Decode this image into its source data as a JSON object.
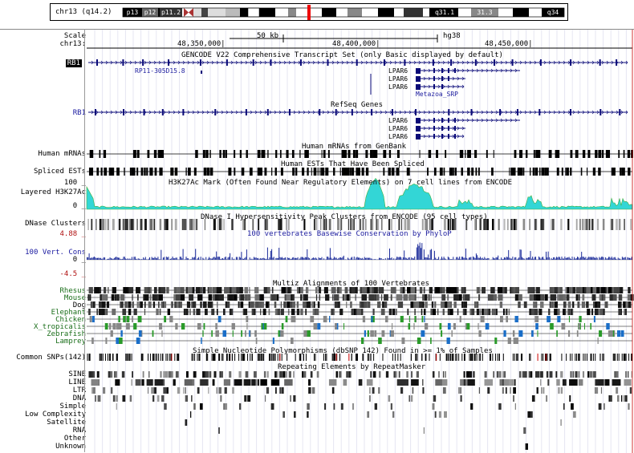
{
  "ideogram": {
    "chrom_label": "chr13 (q14.2)",
    "bands": [
      "p13",
      "p12",
      "p11.2",
      "q31.1",
      "31.3",
      "q34"
    ]
  },
  "ruler": {
    "scale_label": "Scale",
    "chrom_label": "chr13:",
    "scale_bar": "50 kb",
    "assembly": "hg38",
    "ticks": [
      "48,350,000|",
      "48,400,000|",
      "48,450,000|"
    ]
  },
  "tracks": {
    "gencode_title": "GENCODE V22 Comprehensive Transcript Set (only Basic displayed by default)",
    "gencode_gene_left": "RB1",
    "gencode_lnc": "RP11-305D15.8",
    "gencode_genes": [
      "LPAR6",
      "LPAR6",
      "LPAR6"
    ],
    "gencode_metazoa": "Metazoa_SRP",
    "refseq_title": "RefSeq Genes",
    "refseq_gene_left": "RB1",
    "refseq_genes": [
      "LPAR6",
      "LPAR6",
      "LPAR6"
    ],
    "mrna_label": "Human mRNAs",
    "mrna_title": "Human mRNAs from GenBank",
    "est_label": "Spliced ESTs",
    "est_title": "Human ESTs That Have Been Spliced",
    "h3k_max": "100 _",
    "h3k_label": "Layered H3K27Ac",
    "h3k_min": "0 _",
    "h3k_title": "H3K27Ac Mark (Often Found Near Regulatory Elements) on 7 cell lines from ENCODE",
    "dnase_label": "DNase Clusters",
    "dnase_title": "DNase I Hypersensitivity Peak Clusters from ENCODE (95 cell types)",
    "cons_max": "4.88 _",
    "cons_label": "100 Vert. Cons",
    "cons_zero": "0 _",
    "cons_min": "-4.5 _",
    "cons_title": "100 vertebrates Basewise Conservation by PhyloP",
    "multiz_title": "Multiz Alignments of 100 Vertebrates",
    "species": [
      "Rhesus",
      "Mouse",
      "Dog",
      "Elephant",
      "Chicken",
      "X_tropicalis",
      "Zebrafish",
      "Lamprey"
    ],
    "snp_label": "Common SNPs(142)",
    "snp_title": "Simple Nucleotide Polymorphisms (dbSNP 142) Found in >= 1% of Samples",
    "rmsk_title": "Repeating Elements by RepeatMasker",
    "rmsk_classes": [
      "SINE",
      "LINE",
      "LTR",
      "DNA",
      "Simple",
      "Low Complexity",
      "Satellite",
      "RNA",
      "Other",
      "Unknown"
    ]
  },
  "colors": {
    "gene_blue": "#0a0a78",
    "h3k_cyan": "#33d6d6",
    "h3k_green": "#40b040",
    "cons_blue": "#1a2a9a",
    "species_green": "#1a6e1a",
    "cursor_red": "#e00000"
  }
}
